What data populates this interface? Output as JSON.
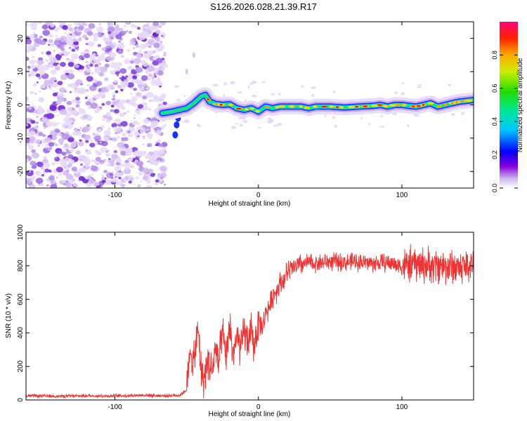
{
  "title": "S126.2026.028.21.39.R17",
  "chart_data": [
    {
      "type": "heatmap",
      "xlabel": "Height of straight line (km)",
      "ylabel": "Frequency (Hz)",
      "xlim": [
        -162,
        150
      ],
      "ylim": [
        -25,
        25
      ],
      "xticks": [
        -100,
        0,
        100
      ],
      "yticks": [
        -20,
        -10,
        0,
        10,
        20
      ],
      "colorbar": {
        "label": "Normalized spectral amplitude",
        "range": [
          0,
          1
        ],
        "ticks": [
          "0.0",
          "0.2",
          "0.4",
          "0.6",
          "0.8"
        ],
        "tick_values": [
          0,
          0.2,
          0.4,
          0.6,
          0.8
        ]
      },
      "noise_region": {
        "x_from": -162,
        "x_to": -65,
        "f_from": -25,
        "f_to": 25
      },
      "ridge": {
        "x": [
          -67,
          -60,
          -55,
          -50,
          -45,
          -40,
          -37,
          -34,
          -30,
          -25,
          -20,
          -15,
          -10,
          -5,
          0,
          5,
          10,
          15,
          20,
          25,
          30,
          35,
          40,
          50,
          60,
          70,
          80,
          85,
          90,
          95,
          100,
          105,
          110,
          115,
          120,
          125,
          130,
          135,
          140,
          145,
          150
        ],
        "f": [
          -2.5,
          -2,
          -1.5,
          -1,
          0.5,
          2.5,
          3,
          1,
          0.3,
          0,
          0.2,
          -1,
          -1.5,
          -1,
          -2,
          -0.5,
          -1,
          -0.5,
          -0.5,
          -0.5,
          -0.5,
          -1,
          -0.5,
          -0.5,
          -0.8,
          -0.5,
          -0.3,
          0,
          -0.5,
          0,
          0,
          -0.3,
          -0.5,
          0,
          0.5,
          -0.5,
          0,
          0.5,
          1,
          1.2,
          1.5
        ]
      }
    },
    {
      "type": "line",
      "xlabel": "Height of straight line (km)",
      "ylabel": "SNR (10 * v/v)",
      "xlim": [
        -162,
        150
      ],
      "ylim": [
        0,
        1000
      ],
      "xticks": [
        -100,
        0,
        100
      ],
      "yticks": [
        0,
        200,
        400,
        600,
        800,
        1000
      ],
      "series": [
        {
          "name": "SNR",
          "color": "#ee3333",
          "x": [
            -162,
            -140,
            -120,
            -100,
            -80,
            -65,
            -55,
            -50,
            -47,
            -45,
            -42,
            -40,
            -38,
            -35,
            -32,
            -30,
            -28,
            -25,
            -22,
            -20,
            -18,
            -15,
            -12,
            -10,
            -8,
            -5,
            -3,
            0,
            3,
            5,
            8,
            10,
            13,
            15,
            18,
            20,
            23,
            25,
            28,
            30,
            33,
            35,
            40,
            45,
            50,
            60,
            70,
            80,
            90,
            100,
            110,
            120,
            130,
            140,
            150
          ],
          "values": [
            25,
            22,
            25,
            24,
            28,
            25,
            28,
            60,
            300,
            220,
            420,
            180,
            120,
            250,
            160,
            320,
            200,
            380,
            250,
            460,
            280,
            360,
            300,
            420,
            350,
            400,
            320,
            470,
            430,
            520,
            560,
            620,
            660,
            700,
            720,
            760,
            780,
            790,
            800,
            810,
            815,
            820,
            815,
            820,
            825,
            820,
            825,
            815,
            820,
            800,
            810,
            800,
            800,
            790,
            810
          ]
        }
      ]
    }
  ]
}
